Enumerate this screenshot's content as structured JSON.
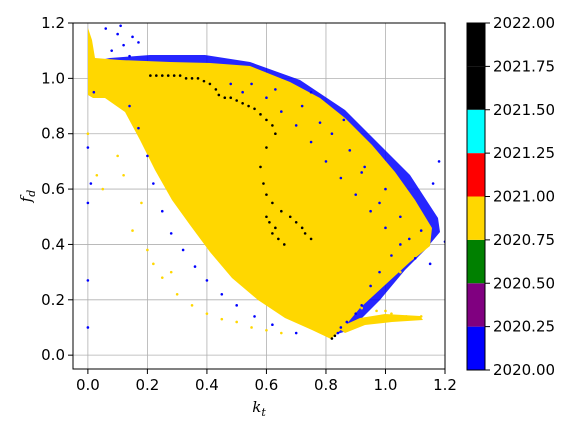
{
  "chart_data": {
    "type": "scatter",
    "xlabel_main": "k",
    "xlabel_sub": "t",
    "ylabel_main": "f",
    "ylabel_sub": "d",
    "xlim": [
      -0.05,
      1.2
    ],
    "ylim": [
      -0.05,
      1.2
    ],
    "grid": true,
    "xticks": [
      0.0,
      0.2,
      0.4,
      0.6,
      0.8,
      1.0,
      1.2
    ],
    "yticks": [
      0.0,
      0.2,
      0.4,
      0.6,
      0.8,
      1.0,
      1.2
    ],
    "xtick_labels": [
      "0.0",
      "0.2",
      "0.4",
      "0.6",
      "0.8",
      "1.0",
      "1.2"
    ],
    "ytick_labels": [
      "0.0",
      "0.2",
      "0.4",
      "0.6",
      "0.8",
      "1.0",
      "1.2"
    ],
    "series": [
      {
        "color": "#0000ff",
        "points": [
          [
            0.06,
            1.18
          ],
          [
            0.1,
            1.16
          ],
          [
            0.12,
            1.12
          ],
          [
            0.15,
            1.15
          ],
          [
            0.08,
            1.1
          ],
          [
            0.14,
            1.08
          ],
          [
            0.17,
            1.13
          ],
          [
            0.11,
            1.19
          ],
          [
            0.02,
            0.95
          ],
          [
            0.0,
            0.75
          ],
          [
            0.01,
            0.62
          ],
          [
            0.0,
            0.55
          ],
          [
            0.0,
            0.27
          ],
          [
            0.0,
            0.1
          ],
          [
            0.14,
            0.9
          ],
          [
            0.17,
            0.82
          ],
          [
            0.2,
            0.72
          ],
          [
            0.22,
            0.62
          ],
          [
            0.25,
            0.52
          ],
          [
            0.28,
            0.44
          ],
          [
            0.32,
            0.38
          ],
          [
            0.36,
            0.32
          ],
          [
            0.4,
            0.27
          ],
          [
            0.45,
            0.22
          ],
          [
            0.5,
            0.18
          ],
          [
            0.56,
            0.14
          ],
          [
            0.62,
            0.11
          ],
          [
            0.7,
            0.08
          ],
          [
            0.55,
            0.98
          ],
          [
            0.6,
            0.93
          ],
          [
            0.65,
            0.88
          ],
          [
            0.7,
            0.83
          ],
          [
            0.75,
            0.77
          ],
          [
            0.8,
            0.7
          ],
          [
            0.85,
            0.64
          ],
          [
            0.9,
            0.58
          ],
          [
            0.95,
            0.52
          ],
          [
            1.0,
            0.46
          ],
          [
            1.05,
            0.4
          ],
          [
            1.1,
            0.35
          ],
          [
            1.15,
            0.33
          ],
          [
            0.95,
            0.25
          ],
          [
            0.98,
            0.3
          ],
          [
            1.02,
            0.36
          ],
          [
            1.08,
            0.42
          ],
          [
            1.12,
            0.45
          ],
          [
            1.18,
            0.7
          ],
          [
            1.16,
            0.62
          ],
          [
            1.2,
            0.41
          ],
          [
            0.85,
            0.1
          ],
          [
            0.87,
            0.12
          ],
          [
            0.9,
            0.15
          ],
          [
            0.92,
            0.18
          ],
          [
            0.84,
            0.08
          ],
          [
            0.72,
            0.9
          ],
          [
            0.78,
            0.84
          ],
          [
            0.88,
            0.74
          ],
          [
            0.92,
            0.66
          ],
          [
            1.0,
            0.6
          ],
          [
            0.98,
            0.55
          ],
          [
            1.05,
            0.5
          ],
          [
            0.52,
            0.95
          ],
          [
            0.48,
            0.98
          ],
          [
            0.63,
            0.96
          ],
          [
            0.75,
            0.95
          ],
          [
            0.82,
            0.8
          ],
          [
            0.86,
            0.85
          ],
          [
            0.93,
            0.68
          ]
        ]
      },
      {
        "color": "#000000",
        "points": [
          [
            0.21,
            1.01
          ],
          [
            0.23,
            1.01
          ],
          [
            0.25,
            1.01
          ],
          [
            0.27,
            1.01
          ],
          [
            0.29,
            1.01
          ],
          [
            0.31,
            1.01
          ],
          [
            0.33,
            1.0
          ],
          [
            0.35,
            1.0
          ],
          [
            0.37,
            1.0
          ],
          [
            0.39,
            0.99
          ],
          [
            0.41,
            0.98
          ],
          [
            0.43,
            0.96
          ],
          [
            0.44,
            0.94
          ],
          [
            0.46,
            0.93
          ],
          [
            0.48,
            0.93
          ],
          [
            0.5,
            0.92
          ],
          [
            0.52,
            0.91
          ],
          [
            0.54,
            0.9
          ],
          [
            0.56,
            0.89
          ],
          [
            0.58,
            0.87
          ],
          [
            0.6,
            0.85
          ],
          [
            0.62,
            0.83
          ],
          [
            0.63,
            0.8
          ],
          [
            0.6,
            0.75
          ],
          [
            0.58,
            0.68
          ],
          [
            0.59,
            0.62
          ],
          [
            0.6,
            0.58
          ],
          [
            0.62,
            0.55
          ],
          [
            0.65,
            0.52
          ],
          [
            0.68,
            0.5
          ],
          [
            0.7,
            0.48
          ],
          [
            0.72,
            0.46
          ],
          [
            0.73,
            0.44
          ],
          [
            0.75,
            0.42
          ],
          [
            0.6,
            0.5
          ],
          [
            0.61,
            0.48
          ],
          [
            0.63,
            0.46
          ],
          [
            0.62,
            0.44
          ],
          [
            0.64,
            0.42
          ],
          [
            0.66,
            0.4
          ],
          [
            0.82,
            0.06
          ],
          [
            0.83,
            0.07
          ]
        ]
      },
      {
        "color": "#ffd700",
        "points": [
          [
            0.87,
            0.16
          ],
          [
            0.92,
            0.17
          ],
          [
            0.97,
            0.16
          ],
          [
            1.02,
            0.15
          ],
          [
            1.07,
            0.14
          ],
          [
            1.12,
            0.14
          ],
          [
            0.95,
            0.13
          ],
          [
            1.0,
            0.16
          ],
          [
            0.15,
            0.45
          ],
          [
            0.2,
            0.38
          ],
          [
            0.22,
            0.33
          ],
          [
            0.25,
            0.28
          ],
          [
            0.3,
            0.22
          ],
          [
            0.35,
            0.18
          ],
          [
            0.4,
            0.15
          ],
          [
            0.45,
            0.13
          ],
          [
            0.5,
            0.12
          ],
          [
            0.55,
            0.1
          ],
          [
            0.6,
            0.09
          ],
          [
            0.65,
            0.08
          ],
          [
            0.1,
            0.72
          ],
          [
            0.12,
            0.65
          ],
          [
            0.18,
            0.55
          ],
          [
            0.28,
            0.3
          ],
          [
            1.1,
            0.48
          ],
          [
            1.14,
            0.44
          ],
          [
            1.08,
            0.55
          ],
          [
            1.05,
            0.3
          ],
          [
            1.1,
            0.38
          ],
          [
            0.03,
            0.65
          ],
          [
            0.05,
            0.6
          ],
          [
            0.0,
            0.8
          ]
        ]
      }
    ],
    "colorbar": {
      "min": 2020.0,
      "max": 2022.0,
      "boundaries": [
        2020.0,
        2020.25,
        2020.5,
        2020.75,
        2021.0,
        2021.25,
        2021.5,
        2021.75,
        2022.0
      ],
      "colors": [
        "#0000ff",
        "#800080",
        "#008000",
        "#ffd700",
        "#ff0000",
        "#00ffff",
        "#000000",
        "#000000"
      ],
      "tick_labels": [
        "2020.00",
        "2020.25",
        "2020.50",
        "2020.75",
        "2021.00",
        "2021.25",
        "2021.50",
        "2021.75",
        "2022.00"
      ]
    }
  }
}
